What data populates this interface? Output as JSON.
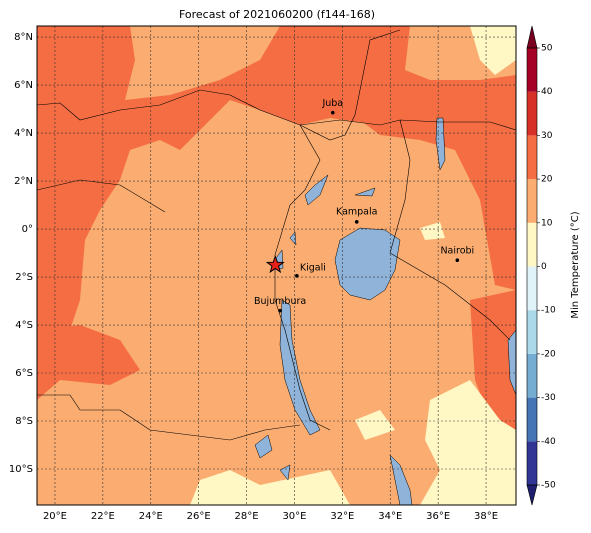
{
  "title": "Forecast of 2021060200 (f144-168)",
  "map": {
    "lon_range": [
      19.25,
      39.25
    ],
    "lat_range": [
      -11.5,
      8.46
    ],
    "lon_ticks": [
      {
        "value": 20,
        "label": "20°E"
      },
      {
        "value": 22,
        "label": "22°E"
      },
      {
        "value": 24,
        "label": "24°E"
      },
      {
        "value": 26,
        "label": "26°E"
      },
      {
        "value": 28,
        "label": "28°E"
      },
      {
        "value": 30,
        "label": "30°E"
      },
      {
        "value": 32,
        "label": "32°E"
      },
      {
        "value": 34,
        "label": "34°E"
      },
      {
        "value": 36,
        "label": "36°E"
      },
      {
        "value": 38,
        "label": "38°E"
      }
    ],
    "lat_ticks": [
      {
        "value": 8,
        "label": "8°N"
      },
      {
        "value": 6,
        "label": "6°N"
      },
      {
        "value": 4,
        "label": "4°N"
      },
      {
        "value": 2,
        "label": "2°N"
      },
      {
        "value": 0,
        "label": "0°"
      },
      {
        "value": -2,
        "label": "2°S"
      },
      {
        "value": -4,
        "label": "4°S"
      },
      {
        "value": -6,
        "label": "6°S"
      },
      {
        "value": -8,
        "label": "8°S"
      },
      {
        "value": -10,
        "label": "10°S"
      }
    ],
    "cities": [
      {
        "name": "Juba",
        "lon": 31.6,
        "lat": 4.85
      },
      {
        "name": "Kampala",
        "lon": 32.6,
        "lat": 0.3
      },
      {
        "name": "Nairobi",
        "lon": 36.8,
        "lat": -1.3
      },
      {
        "name": "Kigali",
        "lon": 30.1,
        "lat": -1.95
      },
      {
        "name": "Bujumbura",
        "lon": 29.4,
        "lat": -3.4
      }
    ],
    "marker": {
      "lon": 29.2,
      "lat": -1.5,
      "color": "#e8211a"
    }
  },
  "colorbar": {
    "label": "Min Temperature (°C)",
    "ticks": [
      50,
      40,
      30,
      20,
      10,
      0,
      -10,
      -20,
      -30,
      -40,
      -50
    ],
    "colors": [
      "#313695",
      "#4575b4",
      "#74add1",
      "#abd9e9",
      "#e0f3f8",
      "#fff7c4",
      "#fbad71",
      "#f46d43",
      "#d73027",
      "#a50026"
    ],
    "extend_colors": [
      "#1e1f70",
      "#7a0020"
    ]
  }
}
